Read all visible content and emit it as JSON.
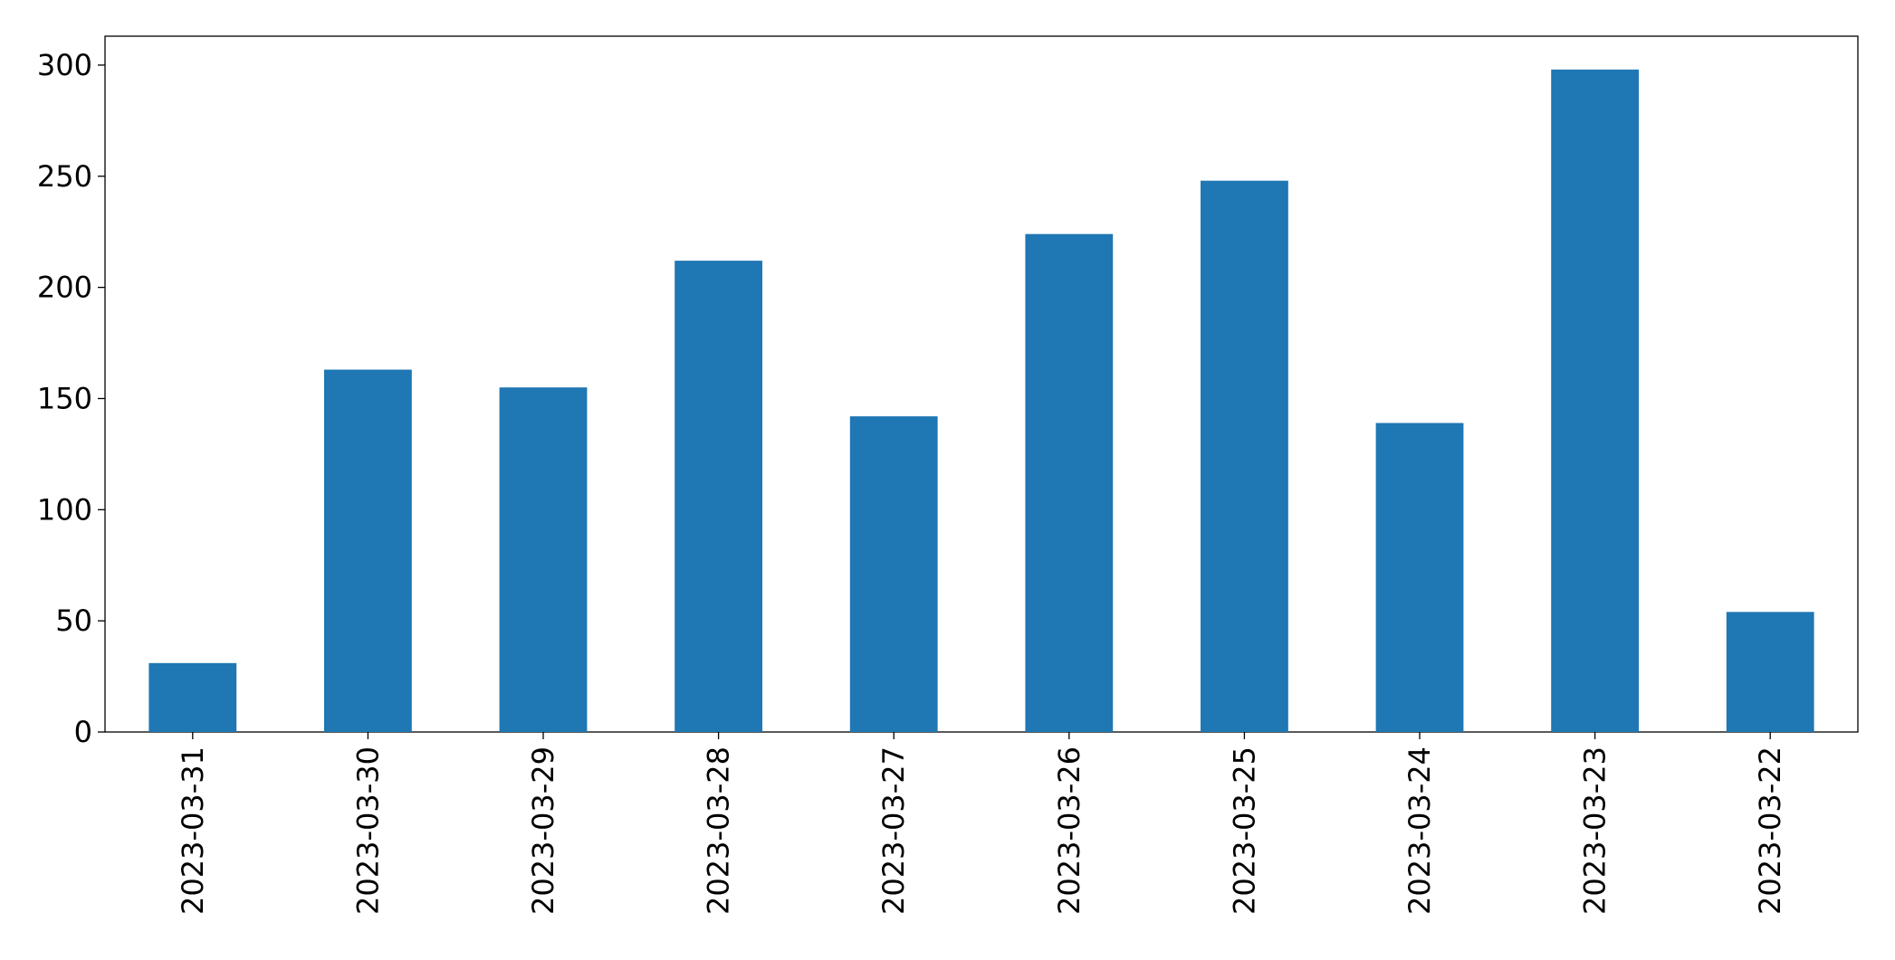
{
  "chart_data": {
    "type": "bar",
    "categories": [
      "2023-03-31",
      "2023-03-30",
      "2023-03-29",
      "2023-03-28",
      "2023-03-27",
      "2023-03-26",
      "2023-03-25",
      "2023-03-24",
      "2023-03-23",
      "2023-03-22"
    ],
    "values": [
      31,
      163,
      155,
      212,
      142,
      224,
      248,
      139,
      298,
      54
    ],
    "color": "#1f77b4",
    "ylim": [
      0,
      313
    ],
    "yticks": [
      0,
      50,
      100,
      150,
      200,
      250,
      300
    ],
    "grid": false
  }
}
